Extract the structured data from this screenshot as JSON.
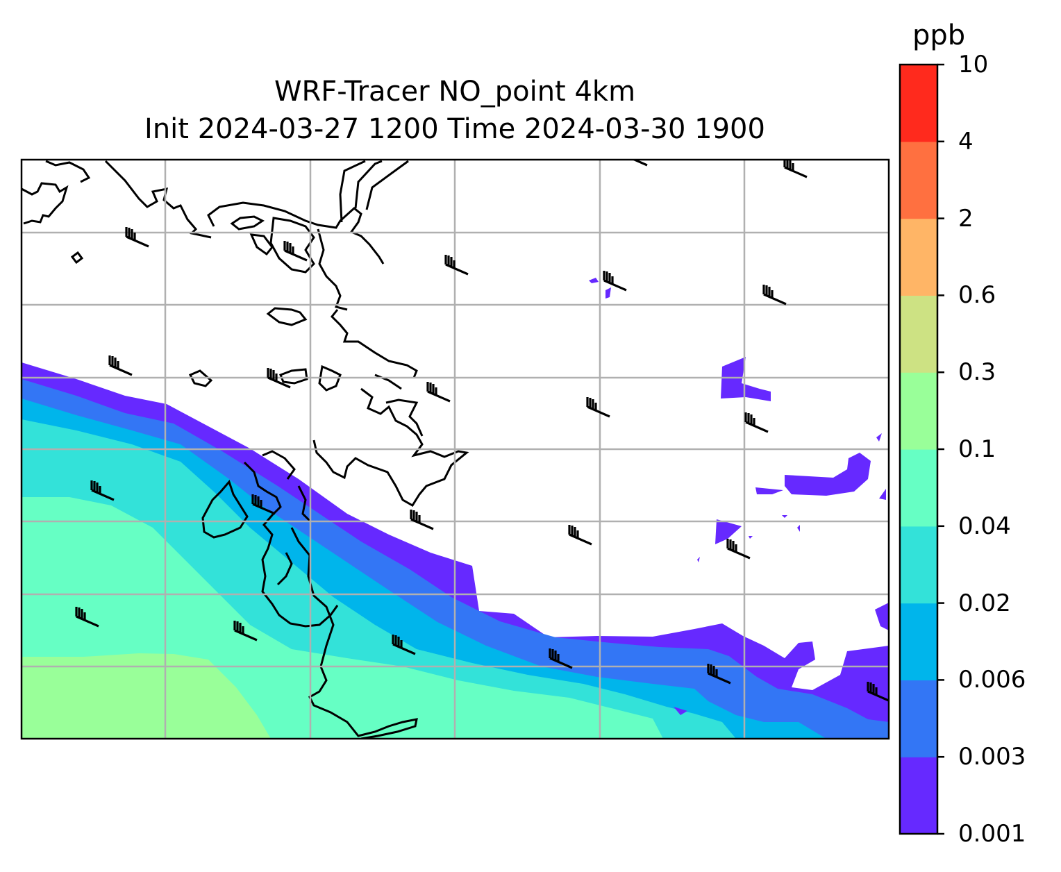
{
  "title": {
    "line1": "WRF-Tracer NO_point 4km",
    "line2": "Init 2024-03-27 1200 Time 2024-03-30 1900"
  },
  "colorbar": {
    "unit": "ppb",
    "levels": [
      "0.001",
      "0.003",
      "0.006",
      "0.02",
      "0.04",
      "0.1",
      "0.3",
      "0.6",
      "2",
      "4",
      "10"
    ],
    "colors": [
      "#6629ff",
      "#3376f5",
      "#00b5eb",
      "#33e2d9",
      "#66ffc4",
      "#99ff99",
      "#cde283",
      "#ffb566",
      "#ff7040",
      "#ff2a1d"
    ]
  },
  "map": {
    "gridline_color": "#b0b0b0",
    "coastline_color": "#000000",
    "wind_barb_symbol": "wind-barb-icon"
  }
}
